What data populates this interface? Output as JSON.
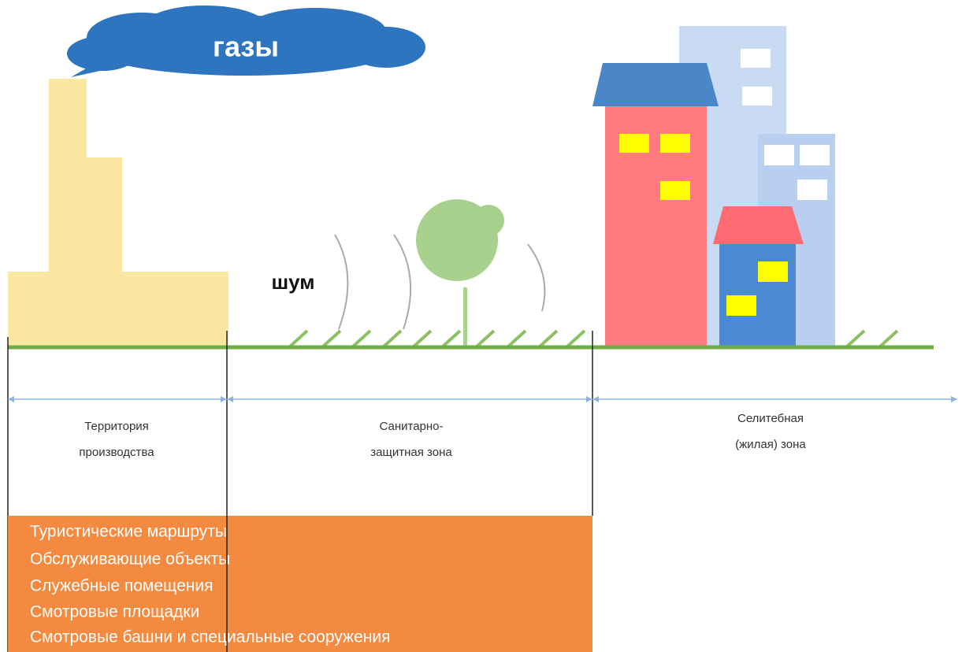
{
  "cloud_label": "газы",
  "noise_label": "шум",
  "zones": [
    {
      "lines": [
        "Территория",
        "производства"
      ]
    },
    {
      "lines": [
        "Санитарно-",
        "защитная зона"
      ]
    },
    {
      "lines": [
        "Селитебная",
        "(жилая) зона"
      ]
    }
  ],
  "list": [
    "Туристические маршруты",
    "Обслуживающие объекты",
    "Служебные помещения",
    "Смотровые площадки",
    "Смотровые башни и специальные сооружения"
  ]
}
